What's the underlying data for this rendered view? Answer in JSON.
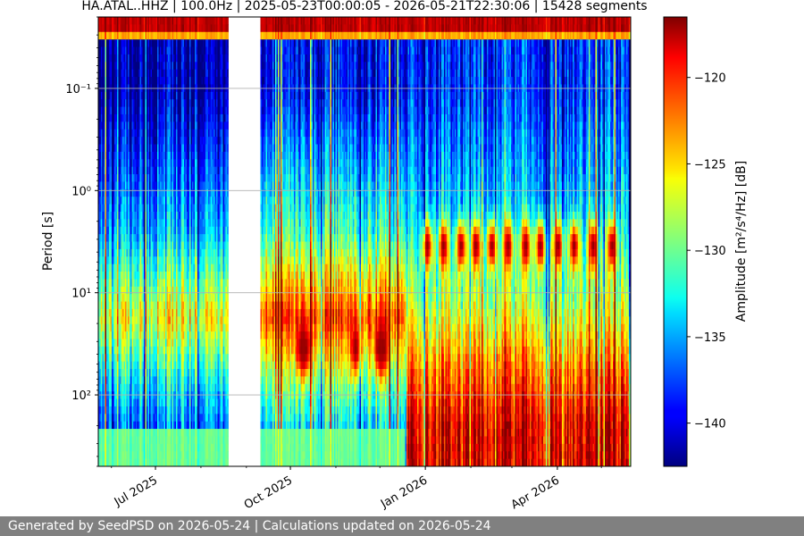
{
  "chart_data": {
    "type": "heatmap",
    "title": "HA.ATAL..HHZ | 100.0Hz | 2025-05-23T00:00:05 - 2026-05-21T22:30:06 | 15428 segments",
    "xlabel": "",
    "ylabel": "Period [s]",
    "x_range": [
      "2025-05-23",
      "2026-05-21"
    ],
    "x_ticks": [
      {
        "date": "2025-07-01",
        "label": "Jul 2025"
      },
      {
        "date": "2025-10-01",
        "label": "Oct 2025"
      },
      {
        "date": "2026-01-01",
        "label": "Jan 2026"
      },
      {
        "date": "2026-04-01",
        "label": "Apr 2026"
      }
    ],
    "y_scale": "log",
    "y_range": [
      0.02,
      500
    ],
    "y_inverted": true,
    "y_ticks": [
      {
        "value": 0.1,
        "label": "10⁻¹"
      },
      {
        "value": 1,
        "label": "10⁰"
      },
      {
        "value": 10,
        "label": "10¹"
      },
      {
        "value": 100,
        "label": "10²"
      }
    ],
    "grid": "horizontal",
    "colormap": "jet",
    "colorbar": {
      "label": "Amplitude [m²/s⁴/Hz] [dB]",
      "range": [
        -142.5,
        -116.5
      ],
      "ticks": [
        -120,
        -125,
        -130,
        -135,
        -140
      ]
    },
    "data_gap": {
      "start": "2025-08-19",
      "end": "2025-09-10"
    },
    "regimes": [
      {
        "start": "2025-05-23",
        "end": "2025-08-19",
        "short_period_db": -141,
        "microseism_db": -126,
        "long_period_db": -136
      },
      {
        "start": "2025-09-10",
        "end": "2025-12-18",
        "short_period_db": -139,
        "microseism_db": -121,
        "long_period_db": -133
      },
      {
        "start": "2025-12-18",
        "end": "2026-05-21",
        "short_period_db": -138,
        "microseism_db": -127,
        "long_period_db": -119
      }
    ],
    "features": [
      {
        "type": "band",
        "period_min": 0.02,
        "period_max": 0.03,
        "db": -118
      },
      {
        "type": "band",
        "period_min": 0.03,
        "period_max": 0.035,
        "db": -124
      },
      {
        "type": "peaks",
        "period": 3.5,
        "db": -117,
        "dates": [
          "2026-01-02",
          "2026-01-13",
          "2026-01-25",
          "2026-02-04",
          "2026-02-15",
          "2026-02-26",
          "2026-03-10",
          "2026-03-20",
          "2026-04-01",
          "2026-04-12",
          "2026-04-25",
          "2026-05-08"
        ]
      },
      {
        "type": "peaks",
        "period": 35,
        "db": -117,
        "dates": [
          "2025-10-08",
          "2025-10-11",
          "2025-11-14",
          "2025-11-30",
          "2025-12-03"
        ]
      },
      {
        "type": "band",
        "period_min": 220,
        "period_max": 500,
        "db": -130,
        "end": "2025-12-18"
      }
    ]
  },
  "footer": {
    "text": "Generated by SeedPSD on 2026-05-24 | Calculations updated on 2026-05-24"
  }
}
